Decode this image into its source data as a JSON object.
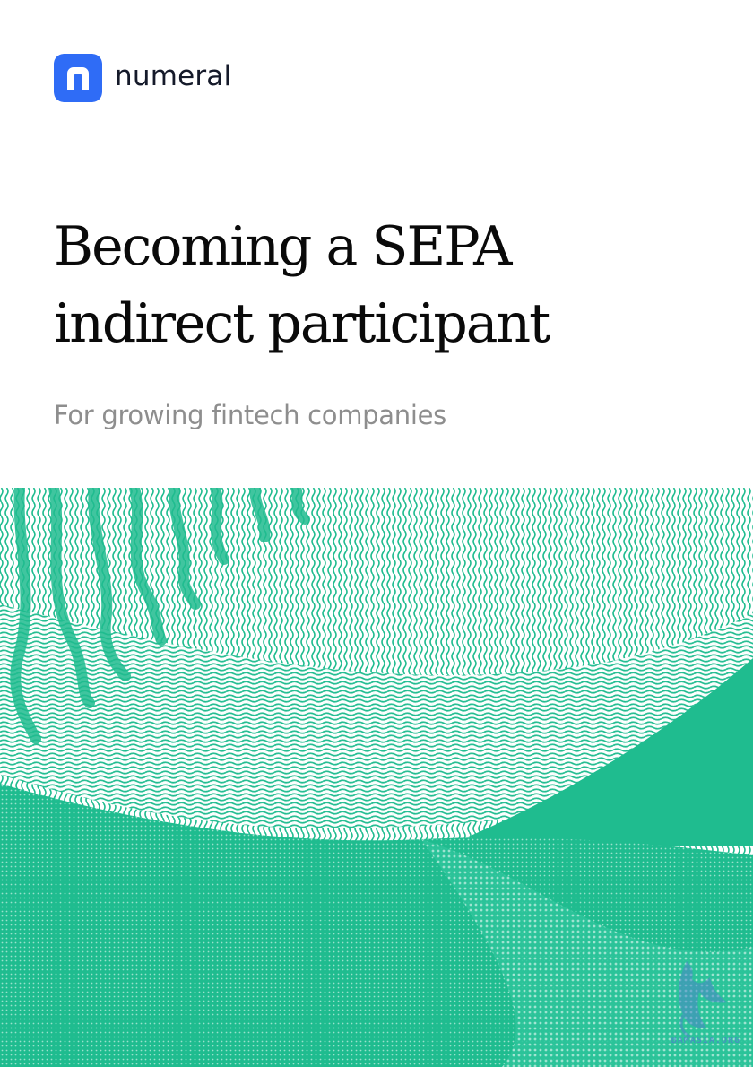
{
  "brand": {
    "name": "numeral",
    "accent_color": "#2f6cf6",
    "mark_icon": "numeral-n-logo-icon"
  },
  "cover": {
    "title_lines": [
      "Becoming a SEPA",
      "indirect participant"
    ],
    "subtitle": "For growing fintech companies"
  },
  "artwork": {
    "description_icon": "green-wave-pattern-illustration",
    "primary_color": "#1fbc8f",
    "secondary_color": "#ffffff"
  },
  "watermark": {
    "text": "BAMASIA.ORG",
    "color": "#4a86c8"
  }
}
